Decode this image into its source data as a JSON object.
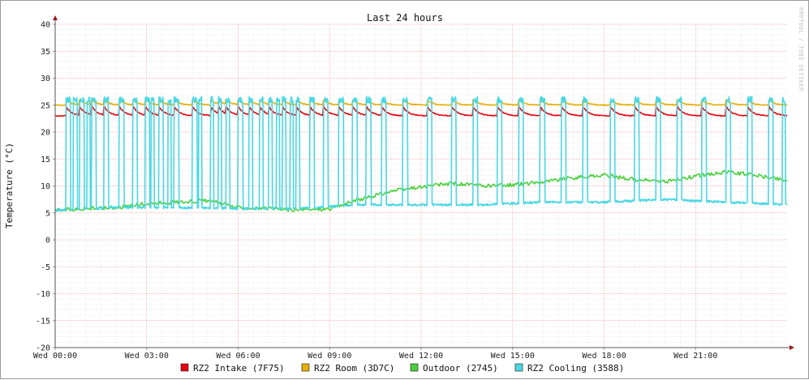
{
  "chart_data": {
    "type": "line",
    "title": "Last 24 hours",
    "ylabel": "Temperature (°C)",
    "watermark": "RRDTOOL / TOBI OETIKER",
    "ylim": [
      -20,
      40
    ],
    "yticks": [
      40,
      35,
      30,
      25,
      20,
      15,
      10,
      5,
      0,
      -5,
      -10,
      -15,
      -20
    ],
    "x_range_hours": [
      0,
      24
    ],
    "xticks": [
      {
        "hour": 0,
        "label": "Wed 00:00"
      },
      {
        "hour": 3,
        "label": "Wed 03:00"
      },
      {
        "hour": 6,
        "label": "Wed 06:00"
      },
      {
        "hour": 9,
        "label": "Wed 09:00"
      },
      {
        "hour": 12,
        "label": "Wed 12:00"
      },
      {
        "hour": 15,
        "label": "Wed 15:00"
      },
      {
        "hour": 18,
        "label": "Wed 18:00"
      },
      {
        "hour": 21,
        "label": "Wed 21:00"
      }
    ],
    "grid": true,
    "legend_position": "bottom",
    "series": [
      {
        "name": "RZ2 Intake (7F75)",
        "color": "#e8000b",
        "pattern": "sawtooth",
        "base": 23.0,
        "peak": 24.8,
        "cycle_starts": [
          0.35,
          0.8,
          1.2,
          1.6,
          2.1,
          2.55,
          2.95,
          3.4,
          3.9,
          4.5,
          5.1,
          5.35,
          5.6,
          6.0,
          6.35,
          6.7,
          7.0,
          7.45,
          7.9,
          8.35,
          8.8,
          9.3,
          9.75,
          10.2,
          10.7,
          11.4,
          12.2,
          13.0,
          13.7,
          14.5,
          15.2,
          15.9,
          16.6,
          17.3,
          18.2,
          19.0,
          19.7,
          20.4,
          21.2,
          22.0,
          22.7,
          23.4
        ],
        "x": [
          0,
          24
        ]
      },
      {
        "name": "RZ2 Room (3D7C)",
        "color": "#e6b000",
        "pattern": "sawtooth",
        "base": 25.0,
        "peak": 26.0,
        "cycle_starts": [
          0.35,
          0.8,
          1.2,
          1.6,
          2.1,
          2.55,
          2.95,
          3.4,
          3.9,
          4.5,
          5.1,
          5.35,
          5.6,
          6.0,
          6.35,
          6.7,
          7.0,
          7.45,
          7.9,
          8.35,
          8.8,
          9.3,
          9.75,
          10.2,
          10.7,
          11.4,
          12.2,
          13.0,
          13.7,
          14.5,
          15.2,
          15.9,
          16.6,
          17.3,
          18.2,
          19.0,
          19.7,
          20.4,
          21.2,
          22.0,
          22.7,
          23.4
        ],
        "x": [
          0,
          24
        ]
      },
      {
        "name": "Outdoor (2745)",
        "color": "#4ad03a",
        "pattern": "trend",
        "x": [
          0,
          1,
          2,
          3,
          4,
          5,
          6,
          7,
          8,
          9,
          10,
          11,
          12,
          13,
          14,
          15,
          16,
          17,
          18,
          19,
          20,
          21,
          22,
          23,
          24
        ],
        "y": [
          5.5,
          5.8,
          6.0,
          6.7,
          7.0,
          7.3,
          6.0,
          5.8,
          5.5,
          5.8,
          7.5,
          9.0,
          9.8,
          10.5,
          10.0,
          10.2,
          10.8,
          11.5,
          12.0,
          11.2,
          10.8,
          11.8,
          12.6,
          12.0,
          11.0
        ]
      },
      {
        "name": "RZ2 Cooling (3588)",
        "color": "#4ad8e4",
        "pattern": "square",
        "low_x": [
          0,
          2,
          4,
          6,
          8,
          10,
          12,
          14,
          16,
          18,
          20,
          22,
          24
        ],
        "low_y": [
          5.5,
          6.0,
          6.0,
          5.8,
          5.8,
          6.5,
          6.5,
          6.5,
          7.0,
          7.0,
          7.5,
          7.0,
          6.5
        ],
        "high": 26.0,
        "pulses": [
          [
            0.35,
            0.15
          ],
          [
            0.6,
            0.12
          ],
          [
            0.8,
            0.15
          ],
          [
            1.05,
            0.1
          ],
          [
            1.2,
            0.15
          ],
          [
            1.6,
            0.15
          ],
          [
            2.1,
            0.15
          ],
          [
            2.55,
            0.15
          ],
          [
            2.95,
            0.15
          ],
          [
            3.15,
            0.1
          ],
          [
            3.4,
            0.15
          ],
          [
            3.7,
            0.1
          ],
          [
            3.9,
            0.15
          ],
          [
            4.5,
            0.15
          ],
          [
            4.7,
            0.1
          ],
          [
            5.1,
            0.1
          ],
          [
            5.35,
            0.1
          ],
          [
            5.6,
            0.12
          ],
          [
            6.0,
            0.15
          ],
          [
            6.35,
            0.12
          ],
          [
            6.7,
            0.12
          ],
          [
            7.0,
            0.12
          ],
          [
            7.25,
            0.1
          ],
          [
            7.45,
            0.12
          ],
          [
            7.7,
            0.1
          ],
          [
            7.9,
            0.12
          ],
          [
            8.35,
            0.15
          ],
          [
            8.8,
            0.15
          ],
          [
            9.3,
            0.15
          ],
          [
            9.75,
            0.15
          ],
          [
            10.2,
            0.15
          ],
          [
            10.7,
            0.15
          ],
          [
            11.4,
            0.15
          ],
          [
            12.2,
            0.15
          ],
          [
            13.0,
            0.15
          ],
          [
            13.7,
            0.15
          ],
          [
            14.5,
            0.15
          ],
          [
            15.2,
            0.15
          ],
          [
            15.9,
            0.15
          ],
          [
            16.6,
            0.15
          ],
          [
            17.3,
            0.15
          ],
          [
            18.2,
            0.15
          ],
          [
            19.0,
            0.15
          ],
          [
            19.7,
            0.15
          ],
          [
            20.4,
            0.15
          ],
          [
            21.2,
            0.15
          ],
          [
            22.0,
            0.15
          ],
          [
            22.7,
            0.15
          ],
          [
            23.4,
            0.15
          ],
          [
            23.85,
            0.1
          ]
        ]
      }
    ]
  }
}
